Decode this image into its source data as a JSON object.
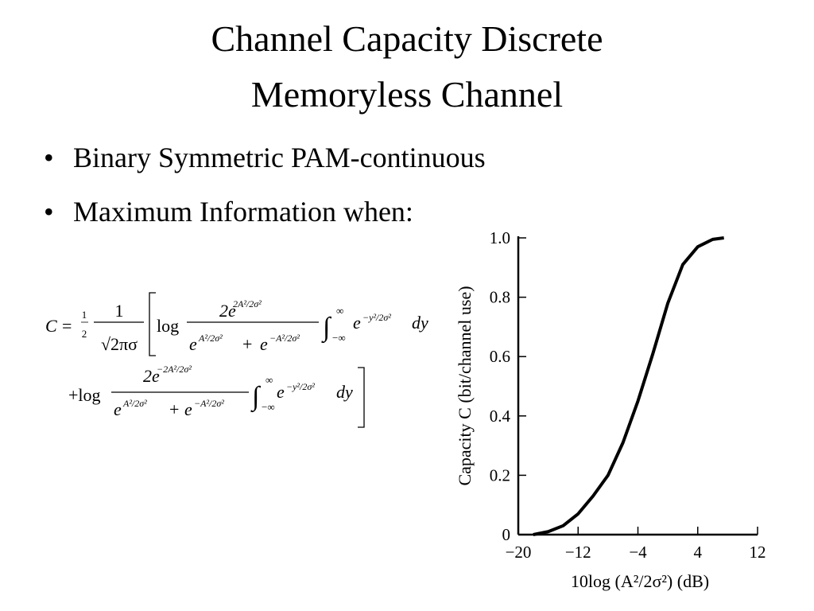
{
  "title": [
    "Channel Capacity Discrete",
    "Memoryless Channel"
  ],
  "bullets": [
    "Binary Symmetric PAM-continuous",
    "Maximum Information when:"
  ],
  "formula": {
    "lhs": "C",
    "eq": "=",
    "half_num": "1",
    "half_den": "2",
    "frac_num": "1",
    "frac_den": "√2πσ",
    "lines": [
      {
        "log": "log",
        "num_base": "2e",
        "num_exp": "2A²/2σ²",
        "den1_base": "e",
        "den1_exp": "A²/2σ²",
        "plus": "+",
        "den2_base": "e",
        "den2_exp": "−A²/2σ²",
        "int": "∫",
        "upper": "∞",
        "lower": "−∞",
        "ig_base": "e",
        "ig_exp": "−y²/2σ²",
        "d": "dy"
      },
      {
        "log": "+log",
        "num_base": "2e",
        "num_exp": "−2A²/2σ²",
        "den1_base": "e",
        "den1_exp": "A²/2σ²",
        "plus": "+",
        "den2_base": "e",
        "den2_exp": "−A²/2σ²",
        "int": "∫",
        "upper": "∞",
        "lower": "−∞",
        "ig_base": "e",
        "ig_exp": "−y²/2σ²",
        "d": "dy"
      }
    ]
  },
  "chart_data": {
    "type": "line",
    "x_label": "10log (A²/2σ²) (dB)",
    "y_label": "Capacity C (bit/channel use)",
    "x": [
      -18,
      -16,
      -14,
      -12,
      -10,
      -8,
      -6,
      -4,
      -2,
      0,
      2,
      4,
      6,
      7.5
    ],
    "series": [
      {
        "color": "#000000",
        "values": [
          0,
          0.01,
          0.03,
          0.07,
          0.13,
          0.2,
          0.31,
          0.45,
          0.61,
          0.78,
          0.91,
          0.97,
          0.995,
          1.0
        ]
      }
    ],
    "xlim": [
      -20,
      12
    ],
    "ylim": [
      0,
      1
    ],
    "xticks": [
      {
        "value": -20,
        "label": "−20"
      },
      {
        "value": -12,
        "label": "−12"
      },
      {
        "value": -4,
        "label": "−4"
      },
      4,
      12
    ],
    "yticks": [
      0,
      0.2,
      0.4,
      0.6,
      0.8,
      {
        "value": 1,
        "label": "1.0"
      }
    ]
  }
}
